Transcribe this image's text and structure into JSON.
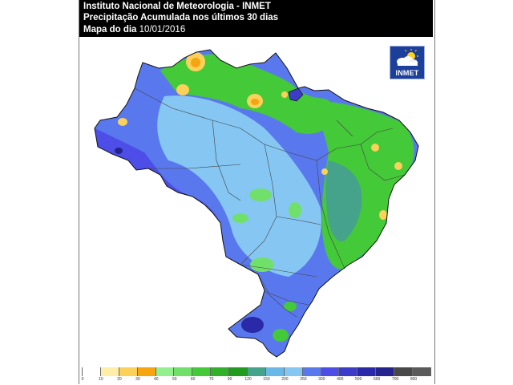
{
  "header": {
    "line1": "Instituto Nacional de Meteorologia - INMET",
    "line2": "Precipitação Acumulada nos últimos 30 dias",
    "line3_label": "Mapa do dia",
    "line3_date": "10/01/2016"
  },
  "logo": {
    "text": "INMET",
    "icon": "sun-cloud-icon"
  },
  "legend": {
    "ticks": [
      "0",
      "10",
      "20",
      "30",
      "40",
      "50",
      "60",
      "70",
      "90",
      "120",
      "150",
      "200",
      "250",
      "300",
      "400",
      "500",
      "600",
      "700",
      "800"
    ],
    "colors": [
      "#ffffff",
      "#ffeea8",
      "#fbd15a",
      "#f6a40f",
      "#94f08e",
      "#71e06a",
      "#44c938",
      "#31b02a",
      "#219b20",
      "#46a38b",
      "#6bb8e6",
      "#85c6f2",
      "#5a78ee",
      "#4d4ee8",
      "#3d3cc8",
      "#2a29a8",
      "#25238c",
      "#484848",
      "#5a5a5a"
    ]
  },
  "map": {
    "region": "Brasil",
    "colors": {
      "outline": "#222222",
      "state_borders": "#444444",
      "blue": "#4d4ee8",
      "light_blue": "#85c6f2",
      "green": "#31b02a",
      "yellow": "#f6c320",
      "teal": "#46a38b"
    }
  }
}
